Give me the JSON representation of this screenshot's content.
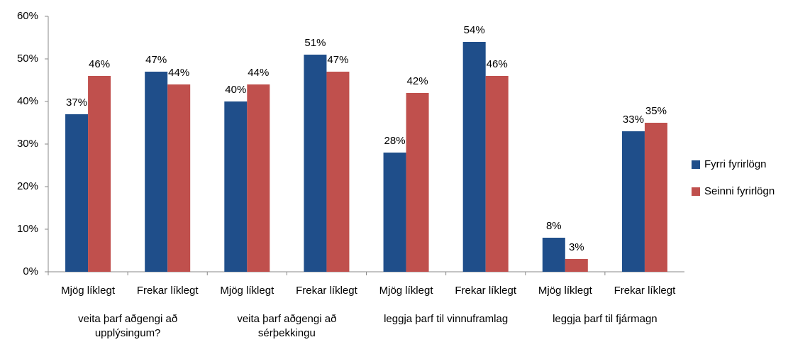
{
  "chart_data": {
    "type": "bar",
    "categories": [
      "Mjög líklegt",
      "Frekar líklegt",
      "Mjög líklegt",
      "Frekar líklegt",
      "Mjög líklegt",
      "Frekar líklegt",
      "Mjög líklegt",
      "Frekar líklegt"
    ],
    "groups": [
      "veita þarf aðgengi að upplýsingum?",
      "veita þarf aðgengi að sérþekkingu",
      "leggja þarf til vinnuframlag",
      "leggja þarf til fjármagn"
    ],
    "series": [
      {
        "name": "Fyrri fyrirlögn",
        "color": "#1f4e8a",
        "values": [
          37,
          47,
          40,
          51,
          28,
          54,
          8,
          33
        ],
        "value_labels": [
          "37%",
          "47%",
          "40%",
          "51%",
          "28%",
          "54%",
          "8%",
          "33%"
        ]
      },
      {
        "name": "Seinni fyrirlögn",
        "color": "#c0504d",
        "values": [
          46,
          44,
          44,
          47,
          42,
          46,
          3,
          35
        ],
        "value_labels": [
          "46%",
          "44%",
          "44%",
          "47%",
          "42%",
          "46%",
          "3%",
          "35%"
        ]
      }
    ],
    "ylim": [
      0,
      60
    ],
    "yticks": [
      {
        "value": 0,
        "label": "0%"
      },
      {
        "value": 10,
        "label": "10%"
      },
      {
        "value": 20,
        "label": "20%"
      },
      {
        "value": 30,
        "label": "30%"
      },
      {
        "value": 40,
        "label": "40%"
      },
      {
        "value": 50,
        "label": "50%"
      },
      {
        "value": 60,
        "label": "60%"
      }
    ],
    "legend": "right",
    "grid": false
  }
}
